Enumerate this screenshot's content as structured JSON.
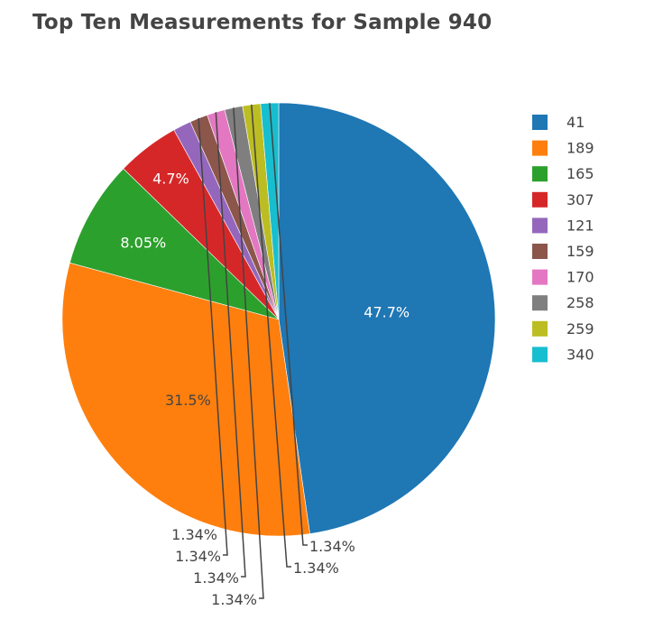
{
  "chart_data": {
    "type": "pie",
    "title": "Top Ten Measurements for Sample 940",
    "slices": [
      {
        "label": "41",
        "value": 47.7,
        "text": "47.7%",
        "color": "#1f77b4"
      },
      {
        "label": "189",
        "value": 31.5,
        "text": "31.5%",
        "color": "#ff7f0e"
      },
      {
        "label": "165",
        "value": 8.05,
        "text": "8.05%",
        "color": "#2ca02c"
      },
      {
        "label": "307",
        "value": 4.7,
        "text": "4.7%",
        "color": "#d62728"
      },
      {
        "label": "121",
        "value": 1.34,
        "text": "1.34%",
        "color": "#9467bd"
      },
      {
        "label": "159",
        "value": 1.34,
        "text": "1.34%",
        "color": "#8c564b"
      },
      {
        "label": "170",
        "value": 1.34,
        "text": "1.34%",
        "color": "#e377c2"
      },
      {
        "label": "258",
        "value": 1.34,
        "text": "1.34%",
        "color": "#7f7f7f"
      },
      {
        "label": "259",
        "value": 1.34,
        "text": "1.34%",
        "color": "#bcbd22"
      },
      {
        "label": "340",
        "value": 1.34,
        "text": "1.34%",
        "color": "#17becf"
      }
    ],
    "direction": "clockwise",
    "start": "top",
    "legend_position": "top-right"
  }
}
